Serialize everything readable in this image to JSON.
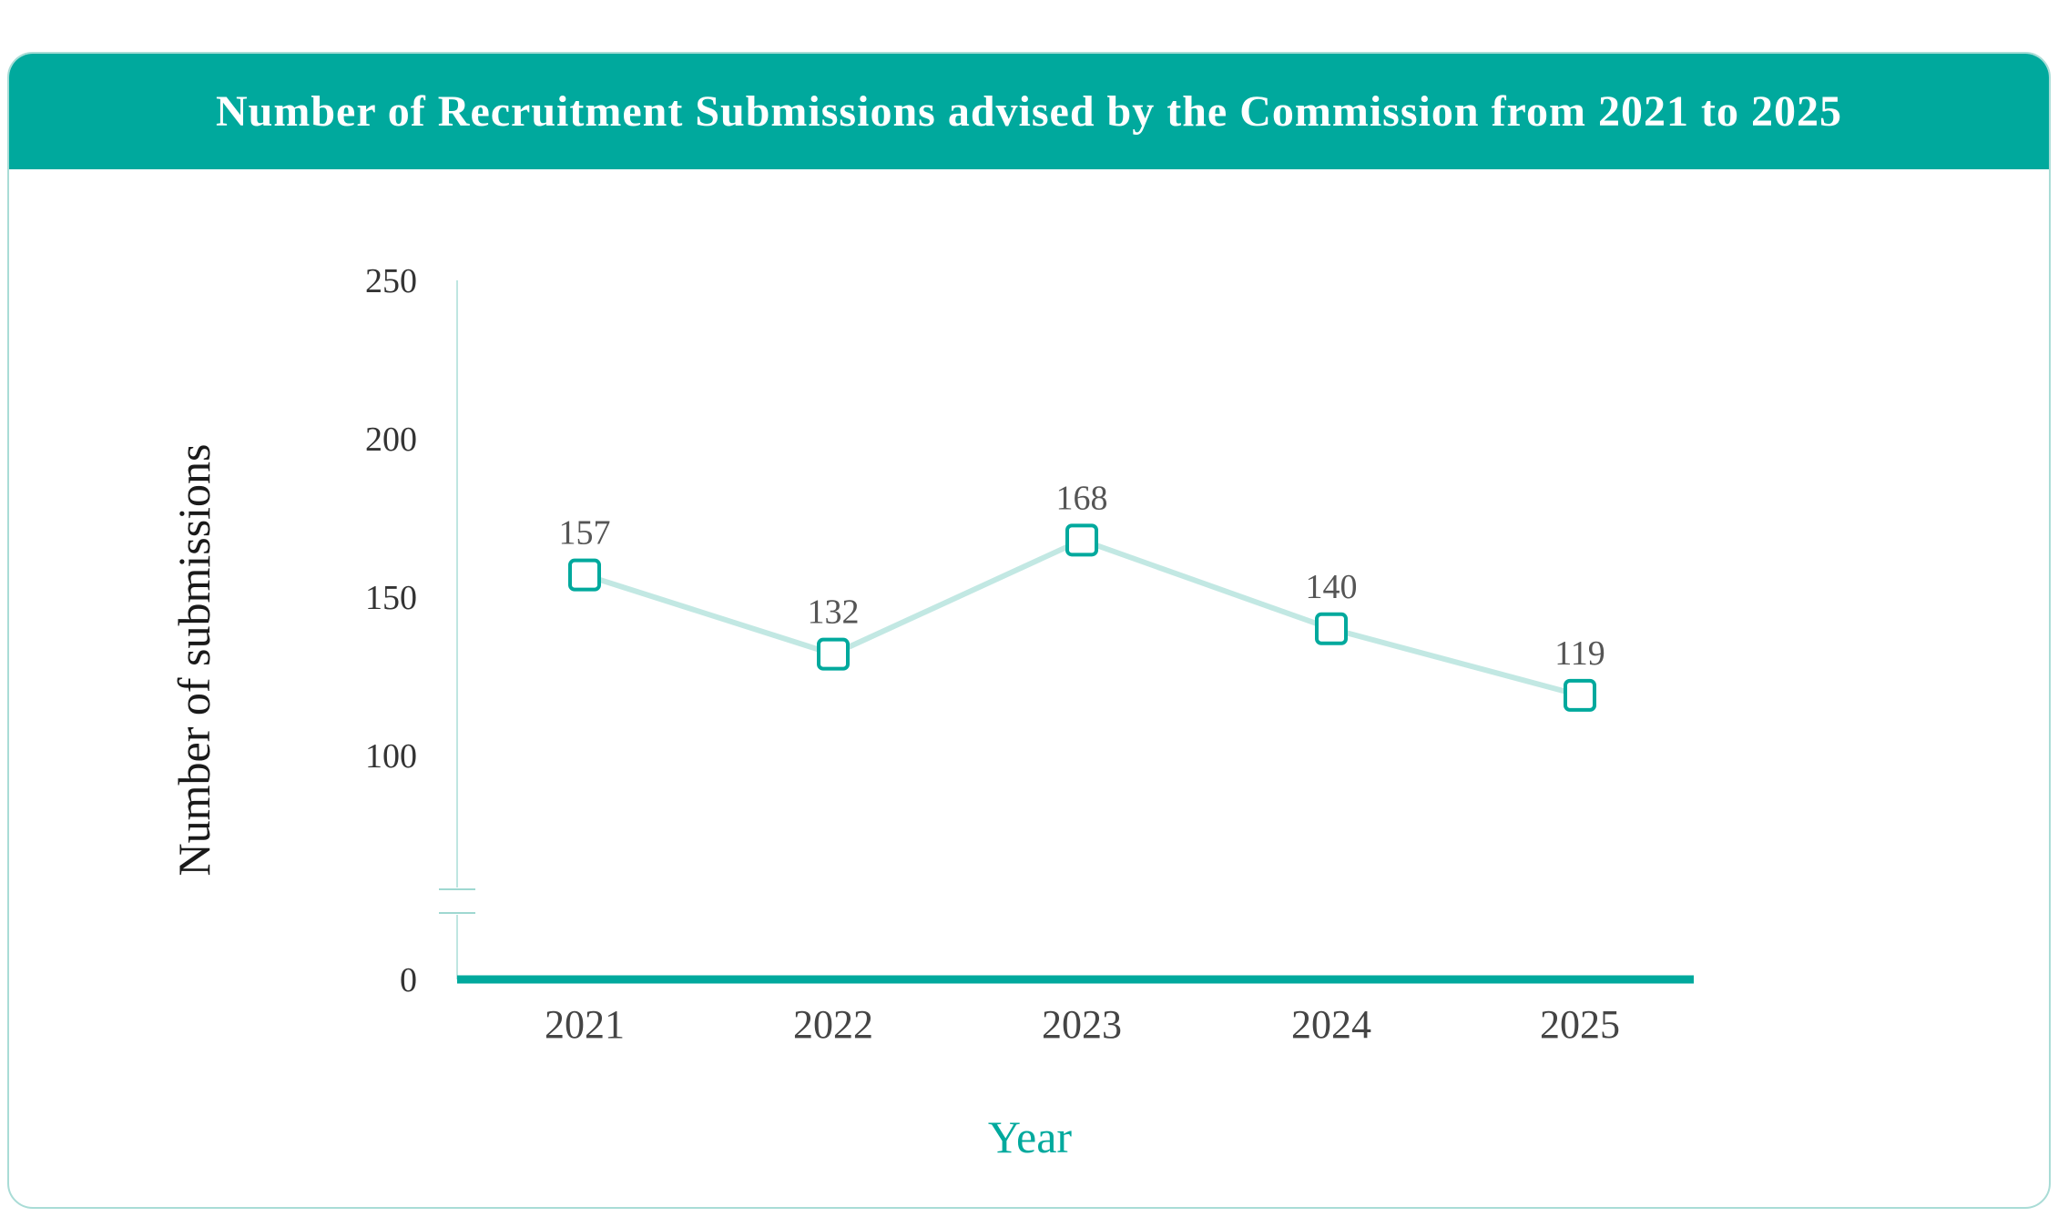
{
  "colors": {
    "accent": "#00a99d",
    "line": "#c2e8e3",
    "highlight": "#00a99d"
  },
  "chart_data": {
    "type": "line",
    "title": "Number of Recruitment Submissions advised by the Commission from 2021 to 2025",
    "xlabel": "Year",
    "ylabel": "Number of submissions",
    "categories": [
      "2021",
      "2022",
      "2023",
      "2024",
      "2025"
    ],
    "series": [
      {
        "values": [
          157,
          132,
          168,
          140,
          119
        ]
      }
    ],
    "yticks": [
      0,
      100,
      150,
      200,
      250
    ],
    "ylim": [
      0,
      250
    ],
    "axis_break": true,
    "highlight_category": "2025",
    "grid": false,
    "marker": "square"
  }
}
